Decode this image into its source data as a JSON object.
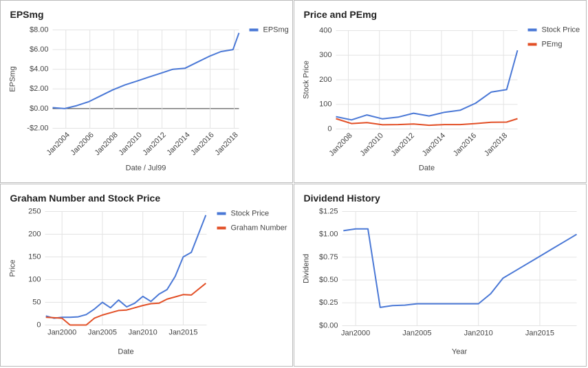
{
  "chart_data": [
    {
      "type": "line",
      "title": "EPSmg",
      "xlabel": "Date / Jul99",
      "ylabel": "EPSmg",
      "legend": "right",
      "grid": true,
      "rotated_xticks": true,
      "x": [
        2002.9,
        2003.9,
        2004.9,
        2005.9,
        2006.9,
        2007.9,
        2008.9,
        2009.9,
        2010.9,
        2011.9,
        2012.9,
        2013.9,
        2014.9,
        2015.9,
        2016.9,
        2017.9,
        2018.4
      ],
      "xlim": [
        2002.9,
        2018.4
      ],
      "xticks": [
        {
          "value": 2004,
          "label": "Jan2004"
        },
        {
          "value": 2006,
          "label": "Jan2006"
        },
        {
          "value": 2008,
          "label": "Jan2008"
        },
        {
          "value": 2010,
          "label": "Jan2010"
        },
        {
          "value": 2012,
          "label": "Jan2012"
        },
        {
          "value": 2014,
          "label": "Jan2014"
        },
        {
          "value": 2016,
          "label": "Jan2016"
        },
        {
          "value": 2018,
          "label": "Jan2018"
        }
      ],
      "ylim": [
        -2,
        8
      ],
      "yticks": [
        {
          "value": -2,
          "label": "-$2.00"
        },
        {
          "value": 0,
          "label": "$0.00"
        },
        {
          "value": 2,
          "label": "$2.00"
        },
        {
          "value": 4,
          "label": "$4.00"
        },
        {
          "value": 6,
          "label": "$6.00"
        },
        {
          "value": 8,
          "label": "$8.00"
        }
      ],
      "series": [
        {
          "name": "EPSmg",
          "color": "#4a78d6",
          "values": [
            0.1,
            0.0,
            0.3,
            0.7,
            1.3,
            1.9,
            2.4,
            2.8,
            3.2,
            3.6,
            4.0,
            4.1,
            4.7,
            5.3,
            5.8,
            6.0,
            7.7
          ]
        }
      ]
    },
    {
      "type": "line",
      "title": "Price and PEmg",
      "xlabel": "Date",
      "ylabel": "Stock Price",
      "legend": "right",
      "grid": true,
      "rotated_xticks": true,
      "x": [
        2007.2,
        2008.2,
        2009.2,
        2010.2,
        2011.2,
        2012.2,
        2013.2,
        2014.2,
        2015.2,
        2016.2,
        2017.2,
        2018.2,
        2018.9
      ],
      "xlim": [
        2007.2,
        2018.9
      ],
      "xticks": [
        {
          "value": 2008,
          "label": "Jan2008"
        },
        {
          "value": 2010,
          "label": "Jan2010"
        },
        {
          "value": 2012,
          "label": "Jan2012"
        },
        {
          "value": 2014,
          "label": "Jan2014"
        },
        {
          "value": 2016,
          "label": "Jan2016"
        },
        {
          "value": 2018,
          "label": "Jan2018"
        }
      ],
      "ylim": [
        0,
        400
      ],
      "yticks": [
        0,
        100,
        200,
        300,
        400
      ],
      "series": [
        {
          "name": "Stock Price",
          "color": "#4a78d6",
          "values": [
            50,
            37,
            57,
            41,
            48,
            64,
            53,
            68,
            76,
            105,
            150,
            160,
            320
          ]
        },
        {
          "name": "PEmg",
          "color": "#e24f26",
          "values": [
            42,
            22,
            26,
            17,
            18,
            20,
            15,
            18,
            18,
            22,
            27,
            28,
            42
          ]
        }
      ]
    },
    {
      "type": "line",
      "title": "Graham Number and Stock Price",
      "xlabel": "Date",
      "ylabel": "Price",
      "legend": "right",
      "grid": true,
      "rotated_xticks": false,
      "x": [
        1998,
        1999,
        2000,
        2001,
        2002,
        2003,
        2004,
        2005,
        2006,
        2007,
        2008,
        2009,
        2010,
        2011,
        2012,
        2013,
        2014,
        2015,
        2016,
        2017.8
      ],
      "xlim": [
        1997.9,
        2017.9
      ],
      "xticks": [
        {
          "value": 2000,
          "label": "Jan2000"
        },
        {
          "value": 2005,
          "label": "Jan2005"
        },
        {
          "value": 2010,
          "label": "Jan2010"
        },
        {
          "value": 2015,
          "label": "Jan2015"
        }
      ],
      "ylim": [
        0,
        250
      ],
      "yticks": [
        0,
        50,
        100,
        150,
        200,
        250
      ],
      "series": [
        {
          "name": "Stock Price",
          "color": "#4a78d6",
          "values": [
            20,
            15,
            17,
            17,
            18,
            23,
            35,
            50,
            38,
            55,
            40,
            48,
            63,
            52,
            68,
            78,
            107,
            150,
            160,
            242
          ]
        },
        {
          "name": "Graham Number",
          "color": "#e24f26",
          "values": [
            17,
            16,
            15,
            0,
            0,
            0,
            15,
            22,
            27,
            32,
            33,
            38,
            43,
            47,
            48,
            57,
            62,
            67,
            66,
            92
          ]
        }
      ]
    },
    {
      "type": "line",
      "title": "Dividend History",
      "xlabel": "Year",
      "ylabel": "Dividend",
      "grid": true,
      "rotated_xticks": false,
      "x": [
        1999,
        2000,
        2001,
        2002,
        2003,
        2004,
        2005,
        2006,
        2007,
        2008,
        2009,
        2010,
        2011,
        2012,
        2013,
        2014,
        2015,
        2016,
        2017,
        2018
      ],
      "xlim": [
        1998.9,
        2018
      ],
      "xticks": [
        {
          "value": 2000,
          "label": "Jan2000"
        },
        {
          "value": 2005,
          "label": "Jan2005"
        },
        {
          "value": 2010,
          "label": "Jan2010"
        },
        {
          "value": 2015,
          "label": "Jan2015"
        }
      ],
      "ylim": [
        0,
        1.25
      ],
      "yticks": [
        {
          "value": 0,
          "label": "$0.00"
        },
        {
          "value": 0.25,
          "label": "$0.25"
        },
        {
          "value": 0.5,
          "label": "$0.50"
        },
        {
          "value": 0.75,
          "label": "$0.75"
        },
        {
          "value": 1,
          "label": "$1.00"
        },
        {
          "value": 1.25,
          "label": "$1.25"
        }
      ],
      "series": [
        {
          "name": "Dividend",
          "color": "#4a78d6",
          "values": [
            1.04,
            1.06,
            1.06,
            0.2,
            0.22,
            0.225,
            0.24,
            0.24,
            0.24,
            0.24,
            0.24,
            0.24,
            0.35,
            0.52,
            0.6,
            0.68,
            0.76,
            0.84,
            0.92,
            1.0
          ]
        }
      ]
    }
  ]
}
